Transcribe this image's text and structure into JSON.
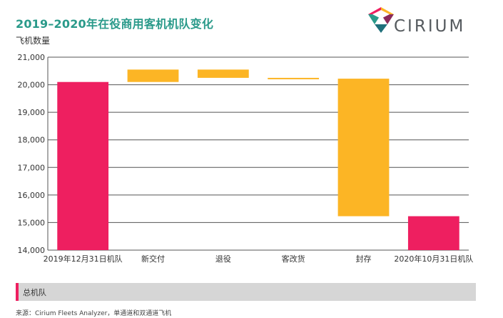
{
  "header": {
    "title": "2019–2020年在役商用客机机队变化",
    "unit_label": "飞机数量"
  },
  "logo": {
    "text": "CIRIUM"
  },
  "legend": {
    "label": "总机队",
    "color": "#ee1f60"
  },
  "source": "来源：Cirium Fleets Analyzer，单通道和双通道飞机",
  "colors": {
    "total": "#ee1f60",
    "change": "#fcb525",
    "title": "#2a9a8a",
    "grid": "#555555"
  },
  "chart_data": {
    "type": "bar",
    "subtype": "waterfall",
    "title": "2019–2020年在役商用客机机队变化",
    "ylabel": "飞机数量",
    "ylim": [
      14000,
      21000
    ],
    "yticks": [
      14000,
      15000,
      16000,
      17000,
      18000,
      19000,
      20000,
      21000
    ],
    "ytick_labels": [
      "14,000",
      "15,000",
      "16,000",
      "17,000",
      "18,000",
      "19,000",
      "20,000",
      "21,000"
    ],
    "grid": true,
    "categories": [
      "2019年12月31日机队",
      "新交付",
      "退役",
      "客改货",
      "封存",
      "2020年10月31日机队"
    ],
    "bars": [
      {
        "kind": "total",
        "start": 14000,
        "end": 20100
      },
      {
        "kind": "change",
        "start": 20100,
        "end": 20550
      },
      {
        "kind": "change",
        "start": 20550,
        "end": 20250
      },
      {
        "kind": "change",
        "start": 20250,
        "end": 20220
      },
      {
        "kind": "change",
        "start": 20220,
        "end": 15230
      },
      {
        "kind": "total",
        "start": 14000,
        "end": 15230
      }
    ]
  }
}
